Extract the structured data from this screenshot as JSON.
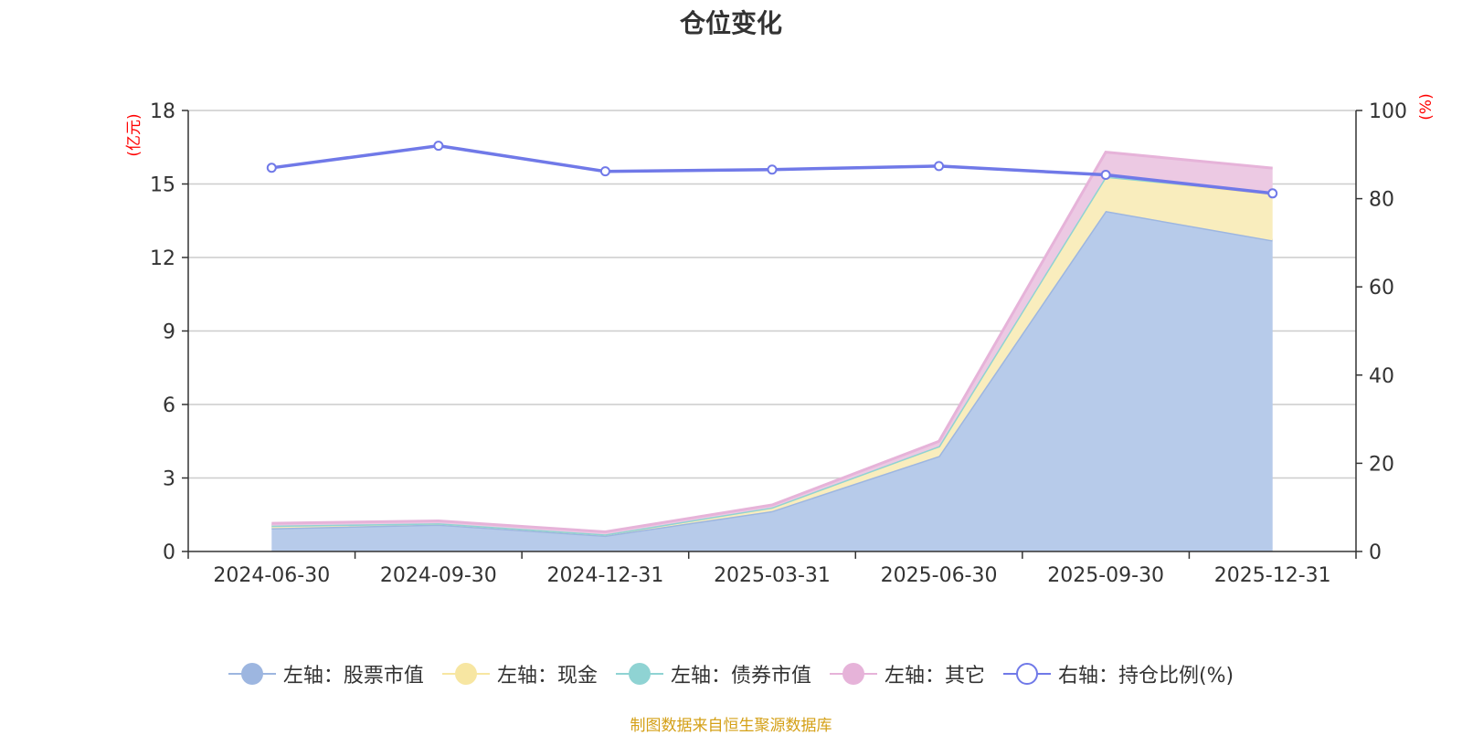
{
  "title": "仓位变化",
  "source_note": "制图数据来自恒生聚源数据库",
  "chart_data": {
    "type": "area",
    "stacked": true,
    "title": "仓位变化",
    "categories": [
      "2024-06-30",
      "2024-09-30",
      "2024-12-31",
      "2025-03-31",
      "2025-06-30",
      "2025-09-30",
      "2025-12-31"
    ],
    "y_left": {
      "label": "(亿元)",
      "min": 0,
      "max": 18,
      "ticks": [
        "0",
        "3",
        "6",
        "9",
        "12",
        "15",
        "18"
      ]
    },
    "y_right": {
      "label": "(%)",
      "min": 0,
      "max": 100,
      "ticks": [
        "0",
        "20",
        "40",
        "60",
        "80",
        "100"
      ]
    },
    "grid": true,
    "legend_position": "bottom",
    "series": [
      {
        "name": "左轴：股票市值",
        "axis": "left",
        "kind": "area",
        "color": "#9db6e0",
        "fill": "#b7cbea",
        "values": [
          0.95,
          1.1,
          0.65,
          1.65,
          3.9,
          13.9,
          12.7
        ]
      },
      {
        "name": "左轴：现金",
        "axis": "left",
        "kind": "area",
        "color": "#f7e6a2",
        "fill": "#f9edbd",
        "values": [
          0.1,
          0.05,
          0.05,
          0.15,
          0.4,
          1.4,
          1.9
        ]
      },
      {
        "name": "左轴：债券市值",
        "axis": "left",
        "kind": "area",
        "color": "#8fd3d3",
        "fill": "#a8dcdc",
        "values": [
          0.0,
          0.0,
          0.0,
          0.0,
          0.0,
          0.0,
          0.05
        ]
      },
      {
        "name": "左轴：其它",
        "axis": "left",
        "kind": "area",
        "color": "#e6b3d9",
        "fill": "#ecc9e3",
        "values": [
          0.1,
          0.1,
          0.1,
          0.1,
          0.2,
          1.0,
          1.0
        ]
      },
      {
        "name": "右轴：持仓比例(%)",
        "axis": "right",
        "kind": "line",
        "color": "#7079e8",
        "values": [
          87.0,
          92.0,
          86.2,
          86.6,
          87.4,
          85.4,
          81.2
        ]
      }
    ]
  }
}
